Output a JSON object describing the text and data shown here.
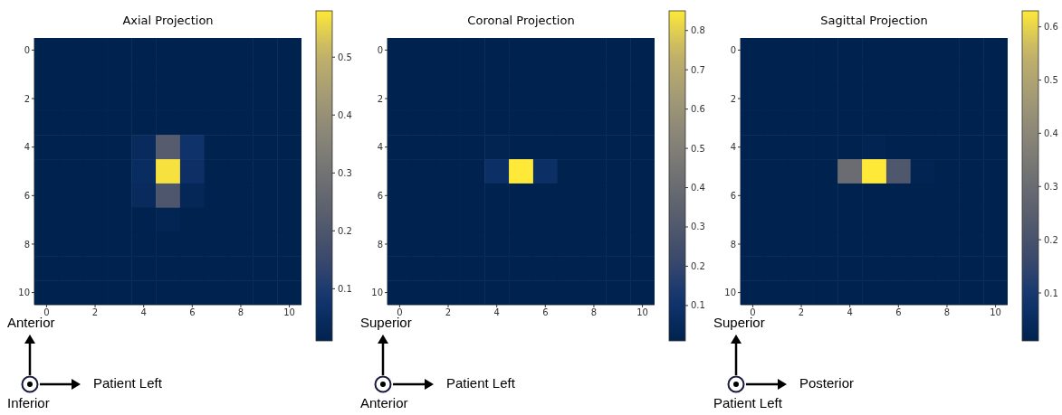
{
  "chart_data": [
    {
      "type": "heatmap",
      "title": "Axial Projection",
      "categories": [
        "0",
        null,
        "2",
        null,
        "4",
        null,
        "6",
        null,
        "8",
        null,
        "10"
      ],
      "y_categories": [
        "0",
        null,
        "2",
        null,
        "4",
        null,
        "6",
        null,
        "8",
        null,
        "10"
      ],
      "cells": [
        [
          0.01,
          0.01,
          0.01,
          0.01,
          0.01,
          0.01,
          0.01,
          0.01,
          0.01,
          0.01,
          0.01
        ],
        [
          0.01,
          0.01,
          0.01,
          0.01,
          0.01,
          0.01,
          0.01,
          0.01,
          0.01,
          0.01,
          0.01
        ],
        [
          0.01,
          0.01,
          0.01,
          0.01,
          0.01,
          0.01,
          0.01,
          0.01,
          0.01,
          0.01,
          0.01
        ],
        [
          0.01,
          0.01,
          0.01,
          0.01,
          0.01,
          0.01,
          0.01,
          0.01,
          0.01,
          0.01,
          0.01
        ],
        [
          0.01,
          0.01,
          0.01,
          0.01,
          0.04,
          0.22,
          0.07,
          0.01,
          0.01,
          0.01,
          0.01
        ],
        [
          0.01,
          0.01,
          0.01,
          0.01,
          0.05,
          0.57,
          0.06,
          0.01,
          0.01,
          0.01,
          0.01
        ],
        [
          0.01,
          0.01,
          0.01,
          0.01,
          0.04,
          0.2,
          0.03,
          0.01,
          0.01,
          0.01,
          0.01
        ],
        [
          0.01,
          0.01,
          0.01,
          0.01,
          0.01,
          0.02,
          0.01,
          0.01,
          0.01,
          0.01,
          0.01
        ],
        [
          0.01,
          0.01,
          0.01,
          0.01,
          0.01,
          0.01,
          0.01,
          0.01,
          0.01,
          0.01,
          0.01
        ],
        [
          0.01,
          0.01,
          0.01,
          0.01,
          0.01,
          0.01,
          0.01,
          0.01,
          0.01,
          0.01,
          0.01
        ],
        [
          0.01,
          0.01,
          0.01,
          0.01,
          0.01,
          0.01,
          0.01,
          0.01,
          0.01,
          0.01,
          0.01
        ]
      ],
      "clim": [
        0.01,
        0.58
      ],
      "cticks": [
        0.1,
        0.2,
        0.3,
        0.4,
        0.5
      ],
      "annotations": [
        "Anterior",
        "Inferior",
        "Patient Left"
      ]
    },
    {
      "type": "heatmap",
      "title": "Coronal Projection",
      "categories": [
        "0",
        null,
        "2",
        null,
        "4",
        null,
        "6",
        null,
        "8",
        null,
        "10"
      ],
      "y_categories": [
        "0",
        null,
        "2",
        null,
        "4",
        null,
        "6",
        null,
        "8",
        null,
        "10"
      ],
      "cells": [
        [
          0.01,
          0.01,
          0.01,
          0.01,
          0.01,
          0.01,
          0.01,
          0.01,
          0.01,
          0.01,
          0.01
        ],
        [
          0.01,
          0.01,
          0.01,
          0.01,
          0.01,
          0.01,
          0.01,
          0.01,
          0.01,
          0.01,
          0.01
        ],
        [
          0.01,
          0.01,
          0.01,
          0.01,
          0.01,
          0.01,
          0.01,
          0.01,
          0.01,
          0.01,
          0.01
        ],
        [
          0.01,
          0.01,
          0.01,
          0.01,
          0.01,
          0.01,
          0.01,
          0.01,
          0.01,
          0.01,
          0.01
        ],
        [
          0.01,
          0.01,
          0.01,
          0.01,
          0.02,
          0.01,
          0.01,
          0.01,
          0.01,
          0.01,
          0.01
        ],
        [
          0.01,
          0.01,
          0.01,
          0.01,
          0.08,
          0.85,
          0.08,
          0.01,
          0.01,
          0.01,
          0.01
        ],
        [
          0.01,
          0.01,
          0.01,
          0.01,
          0.01,
          0.01,
          0.01,
          0.01,
          0.01,
          0.01,
          0.01
        ],
        [
          0.01,
          0.01,
          0.01,
          0.01,
          0.01,
          0.01,
          0.01,
          0.01,
          0.01,
          0.01,
          0.01
        ],
        [
          0.01,
          0.01,
          0.01,
          0.01,
          0.01,
          0.01,
          0.01,
          0.01,
          0.01,
          0.01,
          0.01
        ],
        [
          0.01,
          0.01,
          0.01,
          0.01,
          0.01,
          0.01,
          0.01,
          0.01,
          0.01,
          0.01,
          0.01
        ],
        [
          0.01,
          0.01,
          0.01,
          0.01,
          0.01,
          0.01,
          0.01,
          0.01,
          0.01,
          0.01,
          0.01
        ]
      ],
      "clim": [
        0.01,
        0.85
      ],
      "cticks": [
        0.1,
        0.2,
        0.3,
        0.4,
        0.5,
        0.6,
        0.7,
        0.8
      ],
      "annotations": [
        "Superior",
        "Anterior",
        "Patient Left"
      ]
    },
    {
      "type": "heatmap",
      "title": "Sagittal Projection",
      "categories": [
        "0",
        null,
        "2",
        null,
        "4",
        null,
        "6",
        null,
        "8",
        null,
        "10"
      ],
      "y_categories": [
        "0",
        null,
        "2",
        null,
        "4",
        null,
        "6",
        null,
        "8",
        null,
        "10"
      ],
      "cells": [
        [
          0.01,
          0.01,
          0.01,
          0.01,
          0.01,
          0.01,
          0.01,
          0.01,
          0.01,
          0.01,
          0.01
        ],
        [
          0.01,
          0.01,
          0.01,
          0.01,
          0.01,
          0.01,
          0.01,
          0.01,
          0.01,
          0.01,
          0.01
        ],
        [
          0.01,
          0.01,
          0.01,
          0.01,
          0.01,
          0.01,
          0.01,
          0.01,
          0.01,
          0.01,
          0.01
        ],
        [
          0.01,
          0.01,
          0.01,
          0.01,
          0.01,
          0.01,
          0.01,
          0.01,
          0.01,
          0.01,
          0.01
        ],
        [
          0.01,
          0.01,
          0.01,
          0.01,
          0.01,
          0.02,
          0.01,
          0.01,
          0.01,
          0.01,
          0.01
        ],
        [
          0.01,
          0.01,
          0.01,
          0.01,
          0.3,
          0.63,
          0.22,
          0.02,
          0.01,
          0.01,
          0.01
        ],
        [
          0.01,
          0.01,
          0.01,
          0.01,
          0.01,
          0.01,
          0.01,
          0.01,
          0.01,
          0.01,
          0.01
        ],
        [
          0.01,
          0.01,
          0.01,
          0.01,
          0.01,
          0.01,
          0.01,
          0.01,
          0.01,
          0.01,
          0.01
        ],
        [
          0.01,
          0.01,
          0.01,
          0.01,
          0.01,
          0.01,
          0.01,
          0.01,
          0.01,
          0.01,
          0.01
        ],
        [
          0.01,
          0.01,
          0.01,
          0.01,
          0.01,
          0.01,
          0.01,
          0.01,
          0.01,
          0.01,
          0.01
        ],
        [
          0.01,
          0.01,
          0.01,
          0.01,
          0.01,
          0.01,
          0.01,
          0.01,
          0.01,
          0.01,
          0.01
        ]
      ],
      "clim": [
        0.01,
        0.63
      ],
      "cticks": [
        0.1,
        0.2,
        0.3,
        0.4,
        0.5,
        0.6
      ],
      "annotations": [
        "Superior",
        "Patient Left",
        "Posterior"
      ]
    }
  ]
}
